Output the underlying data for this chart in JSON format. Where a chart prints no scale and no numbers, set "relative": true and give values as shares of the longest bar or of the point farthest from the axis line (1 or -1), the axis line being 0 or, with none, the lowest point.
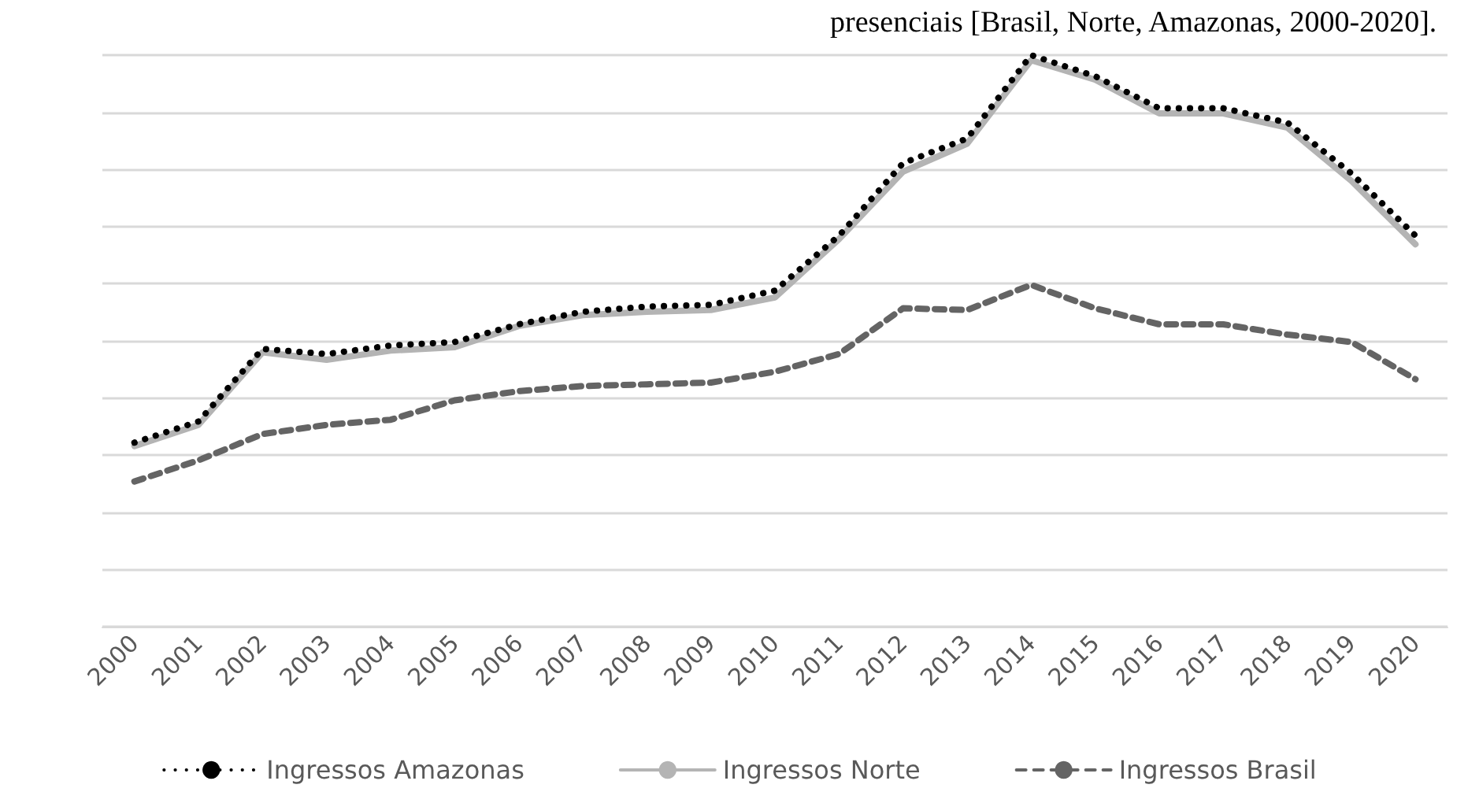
{
  "chart_data": {
    "type": "line",
    "title": "presenciais [Brasil, Norte, Amazonas, 2000-2020].",
    "categories": [
      "2000",
      "2001",
      "2002",
      "2003",
      "2004",
      "2005",
      "2006",
      "2007",
      "2008",
      "2009",
      "2010",
      "2011",
      "2012",
      "2013",
      "2014",
      "2015",
      "2016",
      "2017",
      "2018",
      "2019",
      "2020"
    ],
    "relative": true,
    "grid": "y",
    "legend": "bottom",
    "marker": "none",
    "series": [
      {
        "name": "Ingressos Amazonas",
        "color": "#000000",
        "line_style": "dotted",
        "values": [
          0.322,
          0.359,
          0.486,
          0.477,
          0.492,
          0.498,
          0.529,
          0.551,
          0.56,
          0.563,
          0.588,
          0.684,
          0.811,
          0.854,
          1,
          0.963,
          0.907,
          0.907,
          0.882,
          0.793,
          0.684
        ]
      },
      {
        "name": "Ingressos Norte",
        "color": "#b4b4b4",
        "line_style": "solid",
        "values": [
          0.316,
          0.353,
          0.48,
          0.467,
          0.483,
          0.489,
          0.526,
          0.545,
          0.551,
          0.554,
          0.576,
          0.678,
          0.796,
          0.845,
          0.991,
          0.957,
          0.898,
          0.898,
          0.873,
          0.78,
          0.669
        ]
      },
      {
        "name": "Ingressos Brasil",
        "color": "#646464",
        "line_style": "dashed",
        "values": [
          0.254,
          0.291,
          0.337,
          0.353,
          0.362,
          0.396,
          0.412,
          0.421,
          0.424,
          0.427,
          0.446,
          0.477,
          0.557,
          0.554,
          0.598,
          0.557,
          0.529,
          0.529,
          0.511,
          0.498,
          0.433
        ]
      }
    ]
  }
}
